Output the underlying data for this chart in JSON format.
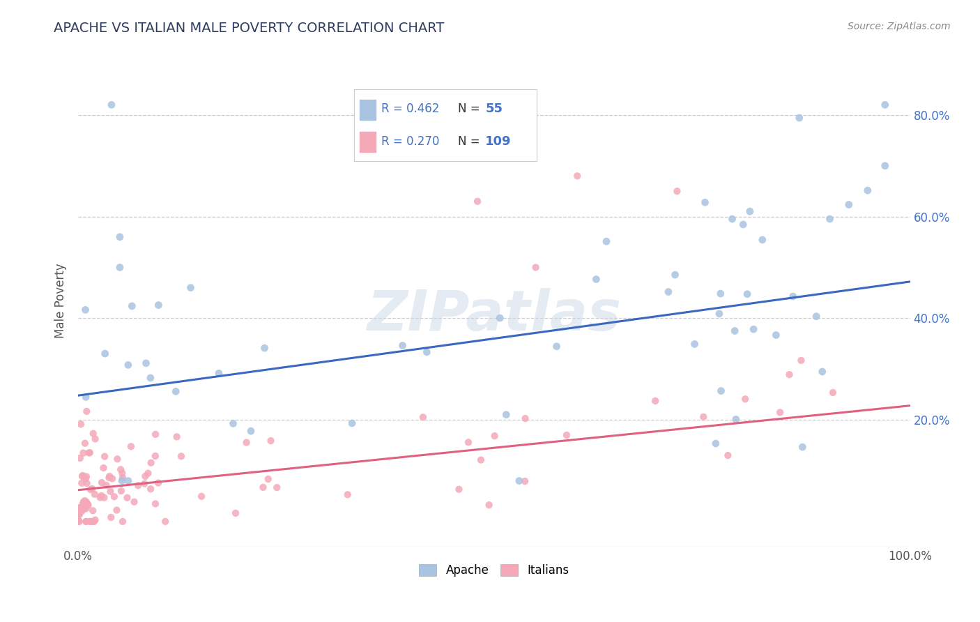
{
  "title": "APACHE VS ITALIAN MALE POVERTY CORRELATION CHART",
  "source": "Source: ZipAtlas.com",
  "ylabel": "Male Poverty",
  "watermark": "ZIPatlas",
  "xlim": [
    0.0,
    1.0
  ],
  "ylim": [
    -0.05,
    0.92
  ],
  "apache_color": "#a8c4e0",
  "italian_color": "#f4a8b8",
  "apache_line_color": "#3a68c0",
  "italian_line_color": "#e06080",
  "apache_R": 0.462,
  "apache_N": 55,
  "italian_R": 0.27,
  "italian_N": 109,
  "background_color": "#ffffff",
  "grid_color": "#c8c8c8",
  "title_color": "#2e3d5f",
  "legend_R_color": "#4472c4",
  "legend_N_color": "#4472c4",
  "ytick_labels": [
    "20.0%",
    "40.0%",
    "60.0%",
    "80.0%"
  ],
  "ytick_values": [
    0.2,
    0.4,
    0.6,
    0.8
  ],
  "xtick_labels": [
    "0.0%",
    "100.0%"
  ],
  "xtick_values": [
    0.0,
    1.0
  ],
  "apache_line_x0": 0.0,
  "apache_line_y0": 0.248,
  "apache_line_x1": 1.0,
  "apache_line_y1": 0.472,
  "italian_line_x0": 0.0,
  "italian_line_y0": 0.062,
  "italian_line_x1": 1.0,
  "italian_line_y1": 0.228
}
